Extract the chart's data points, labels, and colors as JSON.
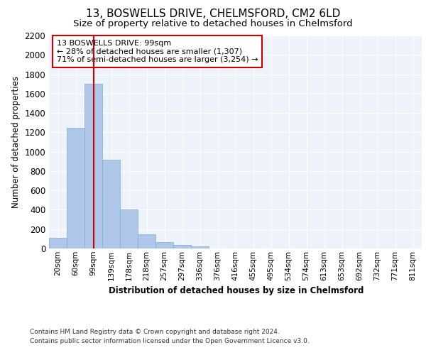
{
  "title": "13, BOSWELLS DRIVE, CHELMSFORD, CM2 6LD",
  "subtitle": "Size of property relative to detached houses in Chelmsford",
  "xlabel": "Distribution of detached houses by size in Chelmsford",
  "ylabel": "Number of detached properties",
  "footer_line1": "Contains HM Land Registry data © Crown copyright and database right 2024.",
  "footer_line2": "Contains public sector information licensed under the Open Government Licence v3.0.",
  "categories": [
    "20sqm",
    "60sqm",
    "99sqm",
    "139sqm",
    "178sqm",
    "218sqm",
    "257sqm",
    "297sqm",
    "336sqm",
    "376sqm",
    "416sqm",
    "455sqm",
    "495sqm",
    "534sqm",
    "574sqm",
    "613sqm",
    "653sqm",
    "692sqm",
    "732sqm",
    "771sqm",
    "811sqm"
  ],
  "values": [
    110,
    1245,
    1700,
    920,
    400,
    150,
    65,
    35,
    22,
    0,
    0,
    0,
    0,
    0,
    0,
    0,
    0,
    0,
    0,
    0,
    0
  ],
  "bar_color": "#aec6e8",
  "bar_edge_color": "#7aafd4",
  "highlight_idx": 2,
  "highlight_color": "#cc0000",
  "ylim": [
    0,
    2200
  ],
  "yticks": [
    0,
    200,
    400,
    600,
    800,
    1000,
    1200,
    1400,
    1600,
    1800,
    2000,
    2200
  ],
  "annotation_title": "13 BOSWELLS DRIVE: 99sqm",
  "annotation_line1": "← 28% of detached houses are smaller (1,307)",
  "annotation_line2": "71% of semi-detached houses are larger (3,254) →",
  "annotation_box_color": "#cc0000",
  "background_color": "#eef2fb",
  "grid_color": "#ffffff",
  "title_fontsize": 11,
  "subtitle_fontsize": 9.5
}
